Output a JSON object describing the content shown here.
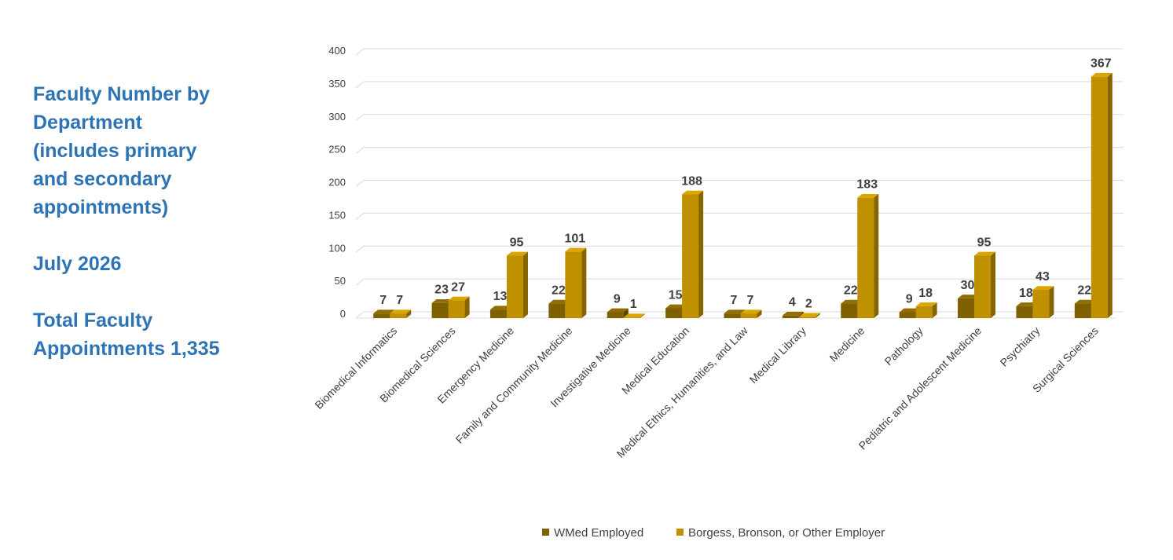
{
  "side_text": {
    "title_line1": "Faculty Number by",
    "title_line2": "Department",
    "title_line3": "(includes primary",
    "title_line4": "and secondary",
    "title_line5": "appointments)",
    "date": "July 2026",
    "total_line1": "Total Faculty",
    "total_line2": "Appointments 1,335"
  },
  "colors": {
    "text_accent": "#2e74b5",
    "wmed": "#7f6000",
    "other": "#bf9000"
  },
  "chart_data": {
    "type": "bar",
    "title": "",
    "xlabel": "",
    "ylabel": "",
    "ylim": [
      0,
      400
    ],
    "yticks": [
      0,
      50,
      100,
      150,
      200,
      250,
      300,
      350,
      400
    ],
    "grid": true,
    "legend_position": "bottom",
    "categories": [
      "Biomedical Informatics",
      "Biomedical Sciences",
      "Emergency Medicine",
      "Family and Community Medicine",
      "Investigative Medicine",
      "Medical Education",
      "Medical Ethics, Humanities, and Law",
      "Medical Library",
      "Medicine",
      "Pathology",
      "Pediatric and Adolescent Medicine",
      "Psychiatry",
      "Surgical Sciences"
    ],
    "series": [
      {
        "name": "WMed Employed",
        "color": "#7f6000",
        "values": [
          7,
          23,
          13,
          22,
          9,
          15,
          7,
          4,
          22,
          9,
          30,
          18,
          22
        ]
      },
      {
        "name": "Borgess, Bronson, or Other Employer",
        "color": "#bf9000",
        "values": [
          7,
          27,
          95,
          101,
          1,
          188,
          7,
          2,
          183,
          18,
          95,
          43,
          367
        ]
      }
    ]
  }
}
